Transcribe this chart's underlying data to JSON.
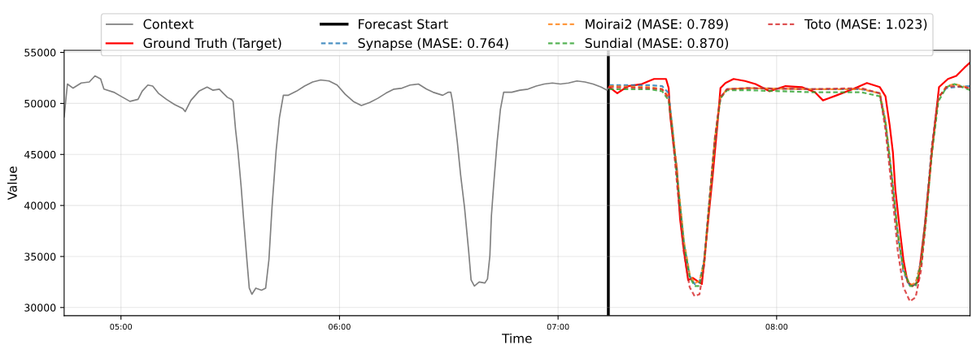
{
  "chart_data": {
    "type": "line",
    "xlabel": "Time",
    "ylabel": "Value",
    "legend": "top",
    "grid": true,
    "xlim": [
      4.74,
      8.885
    ],
    "ylim": [
      29200,
      55200
    ],
    "xticks": [
      {
        "value": 5,
        "label": "05:00"
      },
      {
        "value": 6,
        "label": "06:00"
      },
      {
        "value": 7,
        "label": "07:00"
      },
      {
        "value": 8,
        "label": "08:00"
      }
    ],
    "yticks": [
      30000,
      35000,
      40000,
      45000,
      50000,
      55000
    ],
    "ref_lines": [
      {
        "axis": "x",
        "value": 7.23,
        "label": "Forecast Start",
        "color": "#000000",
        "line_style": "solid"
      }
    ],
    "x": [
      7.234,
      7.42,
      7.476,
      7.506,
      7.524,
      7.55,
      7.576,
      7.602,
      7.625,
      7.647,
      7.669,
      7.691,
      7.717,
      7.743,
      7.773,
      7.866,
      8.164,
      8.387,
      8.472,
      8.498,
      8.528,
      8.554,
      8.58,
      8.61,
      8.636,
      8.662,
      8.684,
      8.71,
      8.74,
      8.777,
      8.814,
      8.885
    ],
    "series": [
      {
        "name": "Context",
        "color": "#808080",
        "line_style": "solid",
        "x": [
          4.74,
          4.755,
          4.781,
          4.818,
          4.855,
          4.881,
          4.907,
          4.922,
          4.967,
          5.0,
          5.041,
          5.078,
          5.097,
          5.123,
          5.145,
          5.171,
          5.208,
          5.245,
          5.283,
          5.294,
          5.32,
          5.357,
          5.394,
          5.42,
          5.45,
          5.468,
          5.487,
          5.506,
          5.513,
          5.524,
          5.535,
          5.55,
          5.561,
          5.576,
          5.587,
          5.599,
          5.617,
          5.643,
          5.662,
          5.677,
          5.691,
          5.71,
          5.725,
          5.743,
          5.766,
          5.803,
          5.84,
          5.877,
          5.914,
          5.952,
          5.989,
          6.026,
          6.063,
          6.1,
          6.138,
          6.175,
          6.212,
          6.249,
          6.286,
          6.323,
          6.361,
          6.398,
          6.428,
          6.472,
          6.498,
          6.509,
          6.517,
          6.528,
          6.539,
          6.554,
          6.572,
          6.591,
          6.602,
          6.617,
          6.639,
          6.665,
          6.677,
          6.688,
          6.695,
          6.706,
          6.721,
          6.736,
          6.751,
          6.788,
          6.825,
          6.862,
          6.9,
          6.937,
          6.974,
          7.011,
          7.048,
          7.086,
          7.123,
          7.16,
          7.197,
          7.223,
          7.23
        ],
        "values": [
          48700,
          51900,
          51500,
          52000,
          52100,
          52700,
          52400,
          51400,
          51100,
          50700,
          50200,
          50400,
          51200,
          51800,
          51700,
          51000,
          50400,
          49900,
          49500,
          49200,
          50300,
          51200,
          51600,
          51300,
          51400,
          51000,
          50600,
          50400,
          50200,
          47500,
          45400,
          41800,
          38700,
          34700,
          31900,
          31300,
          31900,
          31700,
          31900,
          34700,
          39800,
          45400,
          48600,
          50800,
          50800,
          51200,
          51700,
          52100,
          52300,
          52200,
          51800,
          50900,
          50200,
          49800,
          50100,
          50500,
          51000,
          51400,
          51500,
          51800,
          51900,
          51400,
          51100,
          50800,
          51100,
          51100,
          50200,
          48200,
          46200,
          43000,
          39800,
          35500,
          32700,
          32100,
          32500,
          32400,
          32800,
          35100,
          39000,
          42200,
          46200,
          49400,
          51100,
          51100,
          51300,
          51400,
          51700,
          51900,
          52000,
          51900,
          52000,
          52200,
          52100,
          51900,
          51600,
          51300,
          51500
        ]
      },
      {
        "name": "Ground Truth (Target)",
        "color": "#ff0000",
        "line_style": "solid",
        "x": [
          7.234,
          7.271,
          7.32,
          7.383,
          7.439,
          7.494,
          7.506,
          7.513,
          7.528,
          7.543,
          7.558,
          7.576,
          7.595,
          7.617,
          7.643,
          7.658,
          7.68,
          7.706,
          7.729,
          7.743,
          7.766,
          7.803,
          7.855,
          7.903,
          7.967,
          8.041,
          8.115,
          8.175,
          8.212,
          8.275,
          8.349,
          8.413,
          8.472,
          8.498,
          8.517,
          8.532,
          8.543,
          8.561,
          8.58,
          8.599,
          8.621,
          8.647,
          8.677,
          8.714,
          8.743,
          8.784,
          8.822,
          8.859,
          8.885
        ],
        "values": [
          51600,
          51000,
          51700,
          51900,
          52400,
          52400,
          51500,
          48800,
          46000,
          43700,
          38700,
          35500,
          32700,
          32900,
          32500,
          32300,
          37100,
          42600,
          47900,
          51500,
          52000,
          52400,
          52200,
          51900,
          51200,
          51700,
          51600,
          51100,
          50300,
          50800,
          51400,
          52000,
          51600,
          50700,
          47900,
          45200,
          41600,
          38100,
          34700,
          32500,
          32100,
          32500,
          37900,
          46000,
          51600,
          52400,
          52700,
          53500,
          54000
        ]
      },
      {
        "name": "Synapse (MASE: 0.764)",
        "color": "#1f77b4",
        "line_style": "dashed",
        "values": [
          51800,
          51800,
          51700,
          51000,
          47400,
          41800,
          36300,
          33100,
          32300,
          32500,
          34700,
          40200,
          46300,
          50600,
          51400,
          51500,
          51400,
          51400,
          51000,
          48200,
          42600,
          37100,
          33500,
          32100,
          32300,
          34700,
          39400,
          45800,
          50600,
          51500,
          51600,
          51700
        ]
      },
      {
        "name": "Moirai2 (MASE: 0.789)",
        "color": "#ff7f0e",
        "line_style": "dashed",
        "values": [
          51700,
          51600,
          51400,
          50700,
          47600,
          42000,
          36500,
          33300,
          32400,
          32600,
          34500,
          40000,
          46400,
          50600,
          51400,
          51500,
          51400,
          51400,
          51000,
          48400,
          42800,
          37300,
          33700,
          32200,
          32400,
          34500,
          39000,
          45400,
          50500,
          51700,
          51900,
          51500
        ]
      },
      {
        "name": "Sundial (MASE: 0.870)",
        "color": "#2ca02c",
        "line_style": "dashed",
        "values": [
          51400,
          51400,
          51200,
          50300,
          47000,
          41500,
          36100,
          33000,
          32100,
          32100,
          34500,
          40000,
          46400,
          50500,
          51300,
          51300,
          51100,
          51100,
          50700,
          48000,
          42600,
          37300,
          33800,
          32100,
          32100,
          34300,
          38800,
          45000,
          50200,
          51600,
          51900,
          51300
        ]
      },
      {
        "name": "Toto (MASE: 1.023)",
        "color": "#d62728",
        "line_style": "dashed",
        "values": [
          51600,
          51500,
          51400,
          50500,
          46800,
          40800,
          35300,
          32000,
          31100,
          31300,
          34200,
          40000,
          46600,
          50600,
          51400,
          51500,
          51400,
          51500,
          51000,
          47400,
          41400,
          35600,
          32000,
          30600,
          31000,
          33800,
          38800,
          45600,
          50600,
          51600,
          51700,
          51500
        ]
      }
    ]
  }
}
